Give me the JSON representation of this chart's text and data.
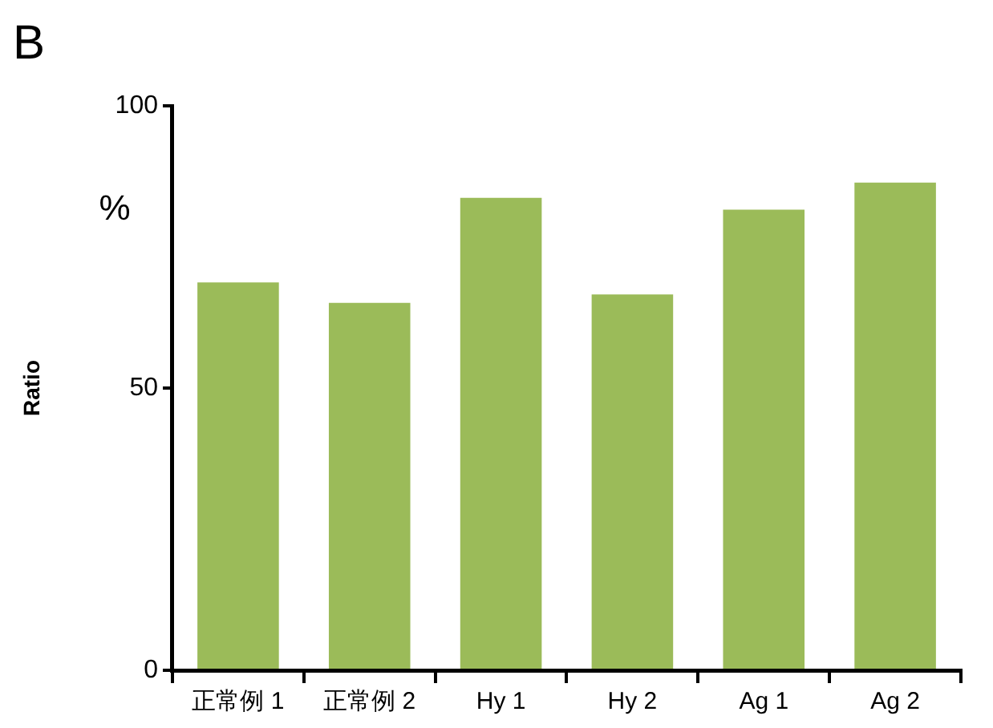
{
  "chart_data": {
    "type": "bar",
    "title": "B",
    "ylabel": "Ratio",
    "annotations": [
      "%"
    ],
    "categories": [
      "正常例 1",
      "正常例 2",
      "Hy 1",
      "Hy 2",
      "Ag 1",
      "Ag 2"
    ],
    "values": [
      68.7,
      65.1,
      83.7,
      66.6,
      81.6,
      86.4
    ],
    "color": "#9bbb59",
    "ylim": [
      0,
      100
    ],
    "yticks": [
      0,
      50,
      100
    ],
    "grid": false,
    "legend": false
  }
}
